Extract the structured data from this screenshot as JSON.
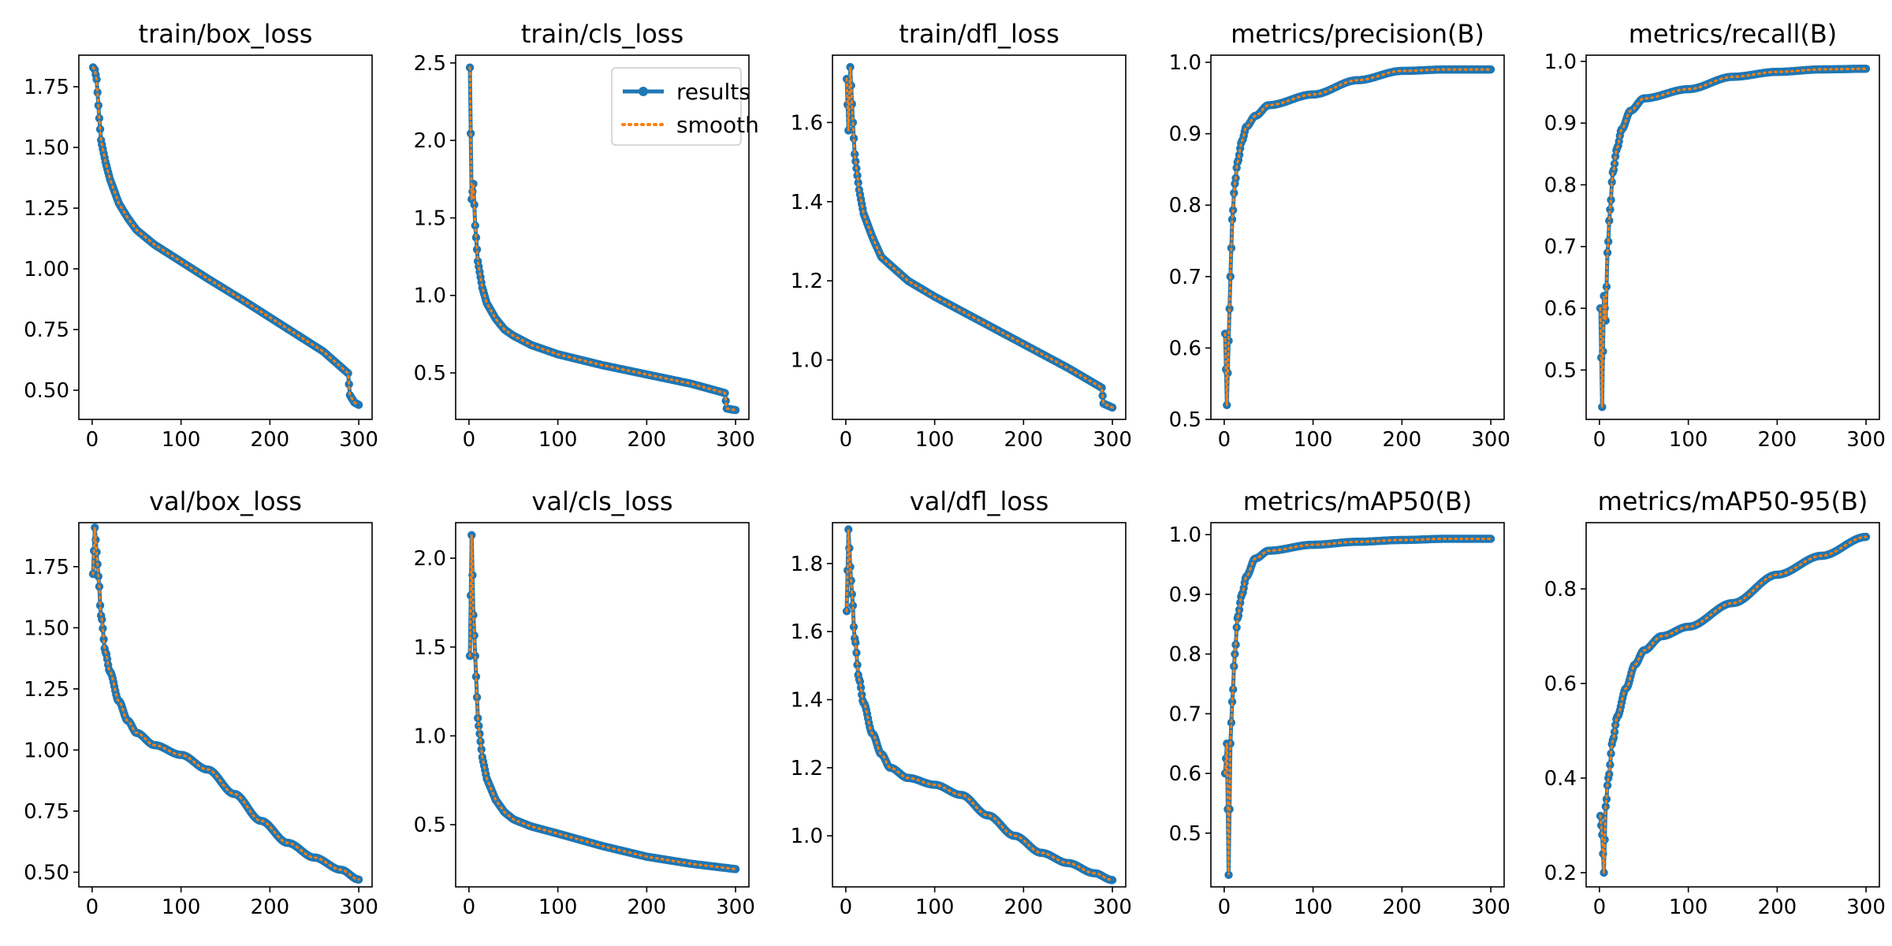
{
  "figure": {
    "rows": 2,
    "cols": 5,
    "colors": {
      "results": "#1f77b4",
      "smooth": "#ff7f0e"
    },
    "legend": {
      "panel_index": 1,
      "location": "upper-right",
      "entries": [
        "results",
        "smooth"
      ]
    }
  },
  "chart_data": [
    {
      "type": "line",
      "title": "train/box_loss",
      "xlim": [
        -15,
        315
      ],
      "ylim": [
        0.38,
        1.88
      ],
      "xticks": [
        0,
        100,
        200,
        300
      ],
      "xtick_labels": [
        "0",
        "100",
        "200",
        "300"
      ],
      "yticks": [
        0.5,
        0.75,
        1.0,
        1.25,
        1.5,
        1.75
      ],
      "ytick_labels": [
        "0.50",
        "0.75",
        "1.00",
        "1.25",
        "1.50",
        "1.75"
      ],
      "series": [
        {
          "name": "results",
          "curve": "box",
          "anchors": [
            [
              1,
              1.83
            ],
            [
              3,
              1.82
            ],
            [
              5,
              1.78
            ],
            [
              8,
              1.62
            ],
            [
              10,
              1.53
            ],
            [
              15,
              1.44
            ],
            [
              20,
              1.37
            ],
            [
              30,
              1.27
            ],
            [
              40,
              1.21
            ],
            [
              50,
              1.16
            ],
            [
              70,
              1.1
            ],
            [
              100,
              1.03
            ],
            [
              130,
              0.96
            ],
            [
              170,
              0.87
            ],
            [
              200,
              0.8
            ],
            [
              230,
              0.73
            ],
            [
              260,
              0.66
            ],
            [
              288,
              0.57
            ],
            [
              290,
              0.48
            ],
            [
              295,
              0.45
            ],
            [
              300,
              0.44
            ]
          ]
        }
      ]
    },
    {
      "type": "line",
      "title": "train/cls_loss",
      "xlim": [
        -15,
        315
      ],
      "ylim": [
        0.2,
        2.55
      ],
      "xticks": [
        0,
        100,
        200,
        300
      ],
      "xtick_labels": [
        "0",
        "100",
        "200",
        "300"
      ],
      "yticks": [
        0.5,
        1.0,
        1.5,
        2.0,
        2.5
      ],
      "ytick_labels": [
        "0.5",
        "1.0",
        "1.5",
        "2.0",
        "2.5"
      ],
      "series": [
        {
          "name": "results",
          "curve": "cls",
          "anchors": [
            [
              1,
              2.47
            ],
            [
              3,
              1.62
            ],
            [
              5,
              1.72
            ],
            [
              7,
              1.45
            ],
            [
              10,
              1.22
            ],
            [
              15,
              1.05
            ],
            [
              20,
              0.95
            ],
            [
              30,
              0.85
            ],
            [
              40,
              0.78
            ],
            [
              50,
              0.74
            ],
            [
              70,
              0.68
            ],
            [
              100,
              0.62
            ],
            [
              150,
              0.55
            ],
            [
              200,
              0.49
            ],
            [
              250,
              0.43
            ],
            [
              288,
              0.37
            ],
            [
              290,
              0.27
            ],
            [
              300,
              0.26
            ]
          ]
        }
      ]
    },
    {
      "type": "line",
      "title": "train/dfl_loss",
      "xlim": [
        -15,
        315
      ],
      "ylim": [
        0.85,
        1.77
      ],
      "xticks": [
        0,
        100,
        200,
        300
      ],
      "xtick_labels": [
        "0",
        "100",
        "200",
        "300"
      ],
      "yticks": [
        1.0,
        1.2,
        1.4,
        1.6
      ],
      "ytick_labels": [
        "1.0",
        "1.2",
        "1.4",
        "1.6"
      ],
      "series": [
        {
          "name": "results",
          "curve": "dfl",
          "anchors": [
            [
              1,
              1.71
            ],
            [
              3,
              1.58
            ],
            [
              5,
              1.74
            ],
            [
              8,
              1.6
            ],
            [
              10,
              1.52
            ],
            [
              15,
              1.43
            ],
            [
              20,
              1.37
            ],
            [
              30,
              1.31
            ],
            [
              40,
              1.26
            ],
            [
              50,
              1.24
            ],
            [
              70,
              1.2
            ],
            [
              100,
              1.16
            ],
            [
              150,
              1.1
            ],
            [
              200,
              1.04
            ],
            [
              250,
              0.98
            ],
            [
              288,
              0.93
            ],
            [
              290,
              0.89
            ],
            [
              300,
              0.88
            ]
          ]
        }
      ]
    },
    {
      "type": "line",
      "title": "metrics/precision(B)",
      "xlim": [
        -15,
        315
      ],
      "ylim": [
        0.5,
        1.01
      ],
      "xticks": [
        0,
        100,
        200,
        300
      ],
      "xtick_labels": [
        "0",
        "100",
        "200",
        "300"
      ],
      "yticks": [
        0.5,
        0.6,
        0.7,
        0.8,
        0.9,
        1.0
      ],
      "ytick_labels": [
        "0.5",
        "0.6",
        "0.7",
        "0.8",
        "0.9",
        "1.0"
      ],
      "series": [
        {
          "name": "results",
          "curve": "rise",
          "anchors": [
            [
              1,
              0.62
            ],
            [
              3,
              0.52
            ],
            [
              5,
              0.61
            ],
            [
              7,
              0.7
            ],
            [
              9,
              0.78
            ],
            [
              12,
              0.83
            ],
            [
              15,
              0.86
            ],
            [
              20,
              0.89
            ],
            [
              25,
              0.91
            ],
            [
              35,
              0.925
            ],
            [
              50,
              0.94
            ],
            [
              100,
              0.955
            ],
            [
              150,
              0.975
            ],
            [
              200,
              0.988
            ],
            [
              250,
              0.99
            ],
            [
              300,
              0.99
            ]
          ]
        }
      ]
    },
    {
      "type": "line",
      "title": "metrics/recall(B)",
      "xlim": [
        -15,
        315
      ],
      "ylim": [
        0.42,
        1.01
      ],
      "xticks": [
        0,
        100,
        200,
        300
      ],
      "xtick_labels": [
        "0",
        "100",
        "200",
        "300"
      ],
      "yticks": [
        0.5,
        0.6,
        0.7,
        0.8,
        0.9,
        1.0
      ],
      "ytick_labels": [
        "0.5",
        "0.6",
        "0.7",
        "0.8",
        "0.9",
        "1.0"
      ],
      "series": [
        {
          "name": "results",
          "curve": "rise",
          "anchors": [
            [
              1,
              0.6
            ],
            [
              3,
              0.44
            ],
            [
              5,
              0.62
            ],
            [
              7,
              0.58
            ],
            [
              9,
              0.69
            ],
            [
              12,
              0.76
            ],
            [
              15,
              0.82
            ],
            [
              20,
              0.86
            ],
            [
              25,
              0.89
            ],
            [
              35,
              0.92
            ],
            [
              50,
              0.94
            ],
            [
              100,
              0.955
            ],
            [
              150,
              0.975
            ],
            [
              200,
              0.983
            ],
            [
              250,
              0.987
            ],
            [
              300,
              0.988
            ]
          ]
        }
      ]
    },
    {
      "type": "line",
      "title": "val/box_loss",
      "xlim": [
        -15,
        315
      ],
      "ylim": [
        0.44,
        1.93
      ],
      "xticks": [
        0,
        100,
        200,
        300
      ],
      "xtick_labels": [
        "0",
        "100",
        "200",
        "300"
      ],
      "yticks": [
        0.5,
        0.75,
        1.0,
        1.25,
        1.5,
        1.75
      ],
      "ytick_labels": [
        "0.50",
        "0.75",
        "1.00",
        "1.25",
        "1.50",
        "1.75"
      ],
      "series": [
        {
          "name": "results",
          "curve": "val",
          "anchors": [
            [
              1,
              1.72
            ],
            [
              3,
              1.91
            ],
            [
              5,
              1.81
            ],
            [
              7,
              1.71
            ],
            [
              10,
              1.55
            ],
            [
              15,
              1.4
            ],
            [
              20,
              1.32
            ],
            [
              30,
              1.2
            ],
            [
              40,
              1.12
            ],
            [
              50,
              1.07
            ],
            [
              70,
              1.02
            ],
            [
              100,
              0.98
            ],
            [
              130,
              0.92
            ],
            [
              160,
              0.82
            ],
            [
              190,
              0.71
            ],
            [
              220,
              0.62
            ],
            [
              250,
              0.56
            ],
            [
              280,
              0.51
            ],
            [
              300,
              0.47
            ]
          ]
        }
      ]
    },
    {
      "type": "line",
      "title": "val/cls_loss",
      "xlim": [
        -15,
        315
      ],
      "ylim": [
        0.15,
        2.2
      ],
      "xticks": [
        0,
        100,
        200,
        300
      ],
      "xtick_labels": [
        "0",
        "100",
        "200",
        "300"
      ],
      "yticks": [
        0.5,
        1.0,
        1.5,
        2.0
      ],
      "ytick_labels": [
        "0.5",
        "1.0",
        "1.5",
        "2.0"
      ],
      "series": [
        {
          "name": "results",
          "curve": "cls",
          "anchors": [
            [
              1,
              1.45
            ],
            [
              3,
              2.13
            ],
            [
              5,
              1.68
            ],
            [
              7,
              1.45
            ],
            [
              10,
              1.1
            ],
            [
              15,
              0.88
            ],
            [
              20,
              0.76
            ],
            [
              30,
              0.64
            ],
            [
              40,
              0.57
            ],
            [
              50,
              0.53
            ],
            [
              70,
              0.49
            ],
            [
              100,
              0.45
            ],
            [
              150,
              0.38
            ],
            [
              200,
              0.32
            ],
            [
              250,
              0.28
            ],
            [
              300,
              0.25
            ]
          ]
        }
      ]
    },
    {
      "type": "line",
      "title": "val/dfl_loss",
      "xlim": [
        -15,
        315
      ],
      "ylim": [
        0.85,
        1.92
      ],
      "xticks": [
        0,
        100,
        200,
        300
      ],
      "xtick_labels": [
        "0",
        "100",
        "200",
        "300"
      ],
      "yticks": [
        1.0,
        1.2,
        1.4,
        1.6,
        1.8
      ],
      "ytick_labels": [
        "1.0",
        "1.2",
        "1.4",
        "1.6",
        "1.8"
      ],
      "series": [
        {
          "name": "results",
          "curve": "val",
          "anchors": [
            [
              1,
              1.66
            ],
            [
              3,
              1.9
            ],
            [
              5,
              1.79
            ],
            [
              7,
              1.71
            ],
            [
              10,
              1.58
            ],
            [
              15,
              1.46
            ],
            [
              20,
              1.39
            ],
            [
              30,
              1.3
            ],
            [
              40,
              1.24
            ],
            [
              50,
              1.2
            ],
            [
              70,
              1.17
            ],
            [
              100,
              1.15
            ],
            [
              130,
              1.12
            ],
            [
              160,
              1.06
            ],
            [
              190,
              1.0
            ],
            [
              220,
              0.95
            ],
            [
              250,
              0.92
            ],
            [
              280,
              0.89
            ],
            [
              300,
              0.87
            ]
          ]
        }
      ]
    },
    {
      "type": "line",
      "title": "metrics/mAP50(B)",
      "xlim": [
        -15,
        315
      ],
      "ylim": [
        0.41,
        1.02
      ],
      "xticks": [
        0,
        100,
        200,
        300
      ],
      "xtick_labels": [
        "0",
        "100",
        "200",
        "300"
      ],
      "yticks": [
        0.5,
        0.6,
        0.7,
        0.8,
        0.9,
        1.0
      ],
      "ytick_labels": [
        "0.5",
        "0.6",
        "0.7",
        "0.8",
        "0.9",
        "1.0"
      ],
      "series": [
        {
          "name": "results",
          "curve": "rise",
          "anchors": [
            [
              1,
              0.6
            ],
            [
              3,
              0.65
            ],
            [
              5,
              0.43
            ],
            [
              7,
              0.65
            ],
            [
              9,
              0.72
            ],
            [
              12,
              0.8
            ],
            [
              15,
              0.86
            ],
            [
              20,
              0.9
            ],
            [
              25,
              0.93
            ],
            [
              35,
              0.96
            ],
            [
              50,
              0.973
            ],
            [
              100,
              0.983
            ],
            [
              150,
              0.988
            ],
            [
              200,
              0.991
            ],
            [
              250,
              0.993
            ],
            [
              300,
              0.993
            ]
          ]
        }
      ]
    },
    {
      "type": "line",
      "title": "metrics/mAP50-95(B)",
      "xlim": [
        -15,
        315
      ],
      "ylim": [
        0.17,
        0.94
      ],
      "xticks": [
        0,
        100,
        200,
        300
      ],
      "xtick_labels": [
        "0",
        "100",
        "200",
        "300"
      ],
      "yticks": [
        0.2,
        0.4,
        0.6,
        0.8
      ],
      "ytick_labels": [
        "0.2",
        "0.4",
        "0.6",
        "0.8"
      ],
      "series": [
        {
          "name": "results",
          "curve": "map",
          "anchors": [
            [
              1,
              0.32
            ],
            [
              3,
              0.28
            ],
            [
              5,
              0.2
            ],
            [
              7,
              0.34
            ],
            [
              10,
              0.4
            ],
            [
              15,
              0.48
            ],
            [
              20,
              0.53
            ],
            [
              30,
              0.59
            ],
            [
              40,
              0.64
            ],
            [
              50,
              0.67
            ],
            [
              70,
              0.7
            ],
            [
              100,
              0.72
            ],
            [
              150,
              0.77
            ],
            [
              200,
              0.83
            ],
            [
              250,
              0.87
            ],
            [
              300,
              0.91
            ]
          ]
        }
      ]
    }
  ]
}
